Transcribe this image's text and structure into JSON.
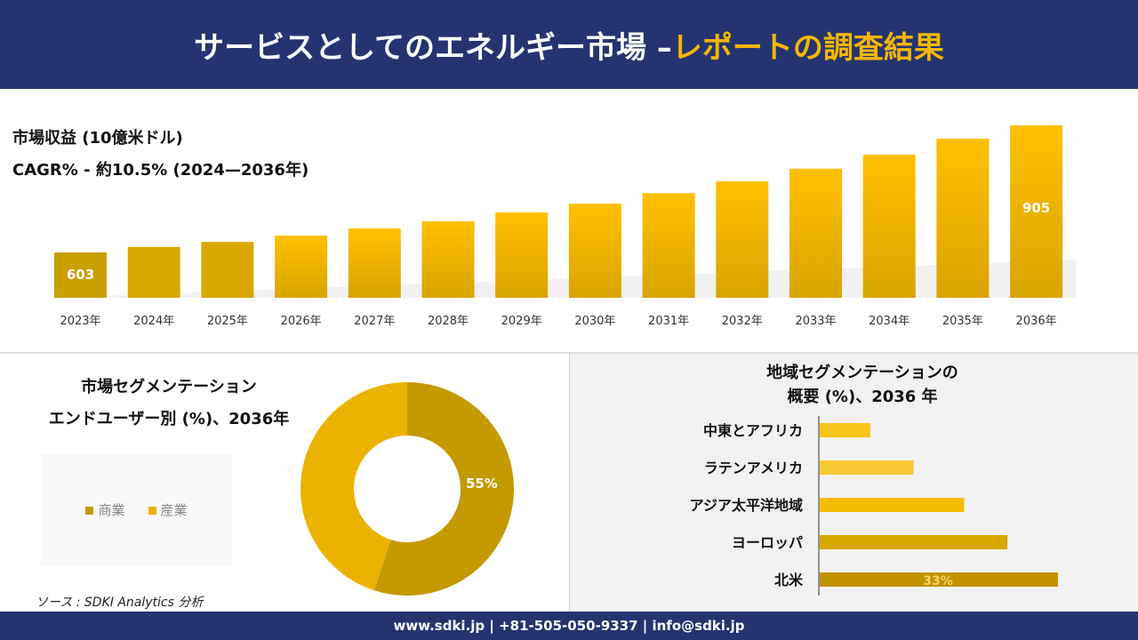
{
  "header": {
    "title_main": "サービスとしてのエネルギー市場 –",
    "title_accent": "レポートの調査結果"
  },
  "colors": {
    "navy": "#253470",
    "accent": "#f5b800"
  },
  "chart_data": [
    {
      "type": "bar",
      "title": "市場収益 (10億米ドル)",
      "subtitle": "CAGR% - 約10.5% (2024—2036年)",
      "categories": [
        "2023年",
        "2024年",
        "2025年",
        "2026年",
        "2027年",
        "2028年",
        "2029年",
        "2030年",
        "2031年",
        "2032年",
        "2033年",
        "2034年",
        "2035年",
        "2036年"
      ],
      "values": [
        603,
        616,
        628,
        643,
        660,
        677,
        698,
        719,
        744,
        772,
        802,
        835,
        873,
        905
      ],
      "data_labels": {
        "0": "603",
        "13": "905"
      },
      "grid": false
    },
    {
      "type": "pie",
      "title": "市場セグメンテーション",
      "subtitle": "エンドユーザー別 (%)、2036年",
      "slices": [
        {
          "name": "商業",
          "value": 55,
          "label": "55%",
          "color": "#c49a00"
        },
        {
          "name": "産業",
          "value": 45,
          "color": "#ebb300"
        }
      ],
      "legend": "left"
    },
    {
      "type": "bar",
      "orientation": "horizontal",
      "title": "地域セグメンテーションの",
      "subtitle": "概要 (%)、2036 年",
      "categories": [
        "中東とアフリカ",
        "ラテンアメリカ",
        "アジア太平洋地域",
        "ヨーロッパ",
        "北米"
      ],
      "values": [
        7,
        13,
        20,
        26,
        33
      ],
      "data_labels": {
        "4": "33%"
      },
      "colors": [
        "#f5c518",
        "#f9c935",
        "#f5bd00",
        "#d9a800",
        "#c29200"
      ]
    }
  ],
  "source": "ソース : SDKI Analytics 分析",
  "footer": "www.sdki.jp | +81-505-050-9337 | info@sdki.jp"
}
